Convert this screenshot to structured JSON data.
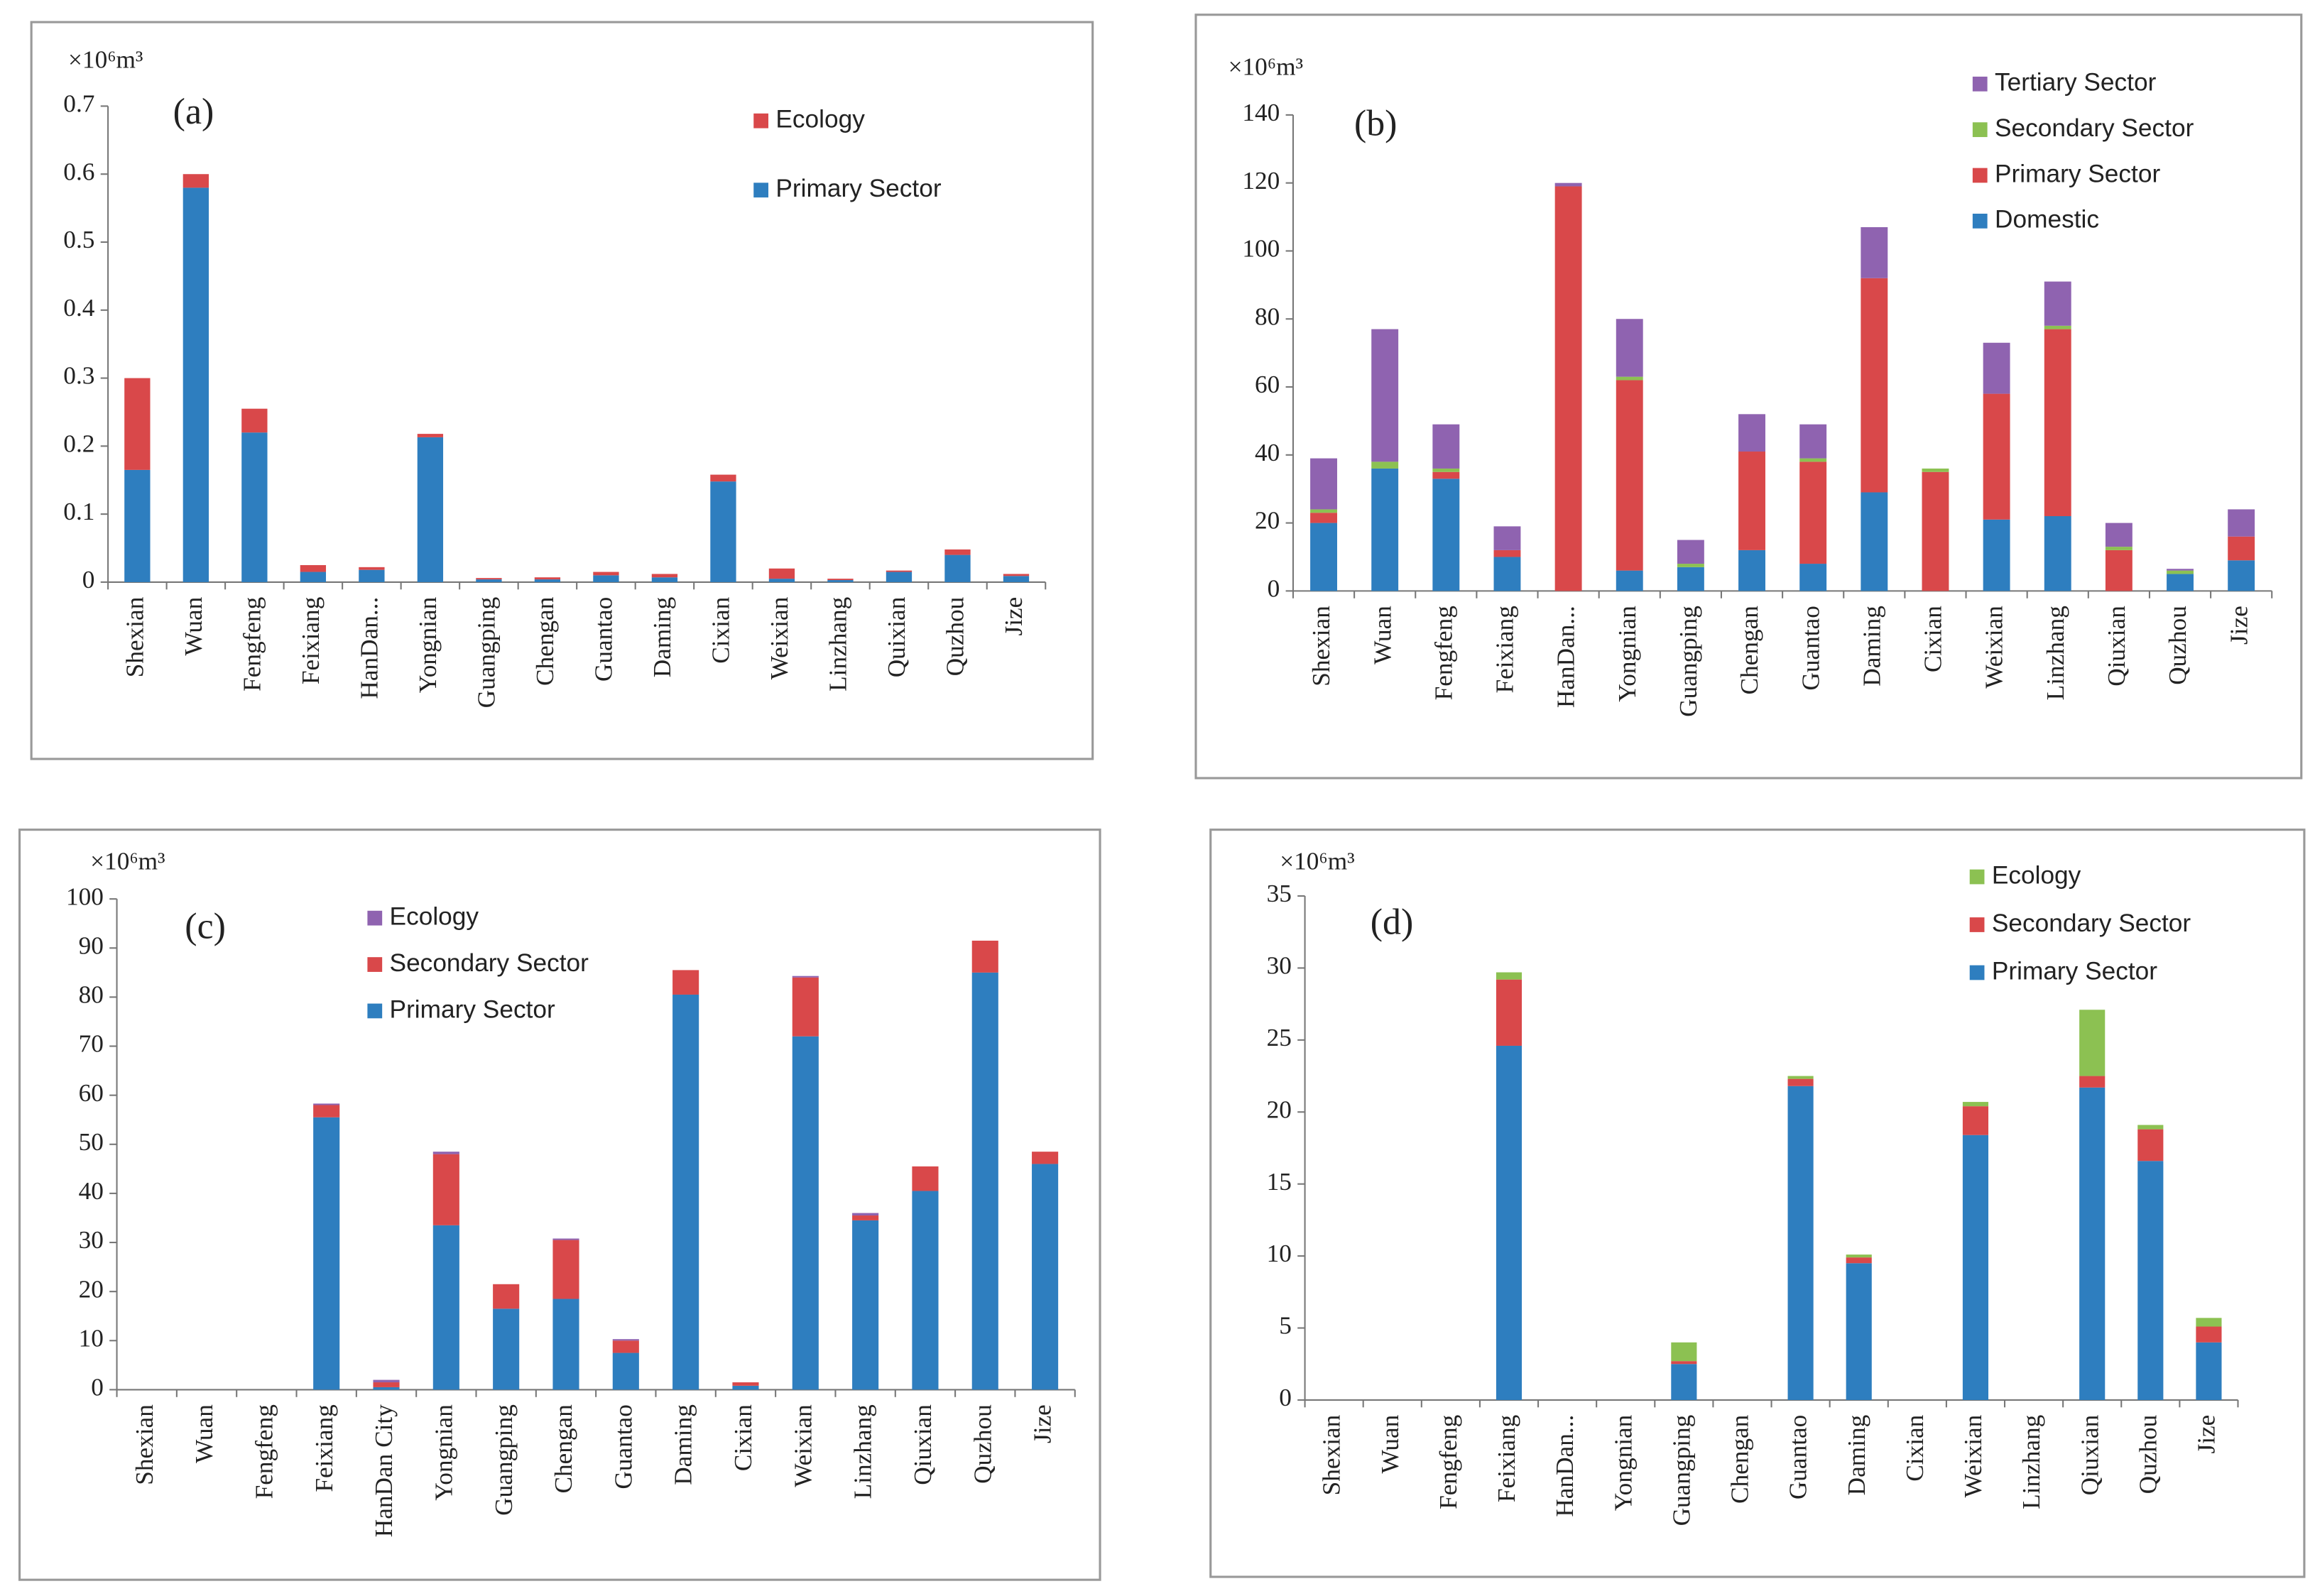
{
  "chart_data": [
    {
      "type": "bar",
      "stacked": true,
      "annotation": "(a)",
      "y_label": "×10⁶m³",
      "categories": [
        "Shexian",
        "Wuan",
        "Fengfeng",
        "Feixiang",
        "HanDan...",
        "Yongnian",
        "Guangping",
        "Chengan",
        "Guantao",
        "Daming",
        "Cixian",
        "Weixian",
        "Linzhang",
        "Quixian",
        "Quzhou",
        "Jize"
      ],
      "series": [
        {
          "name": "Primary Sector",
          "color": "#2e7ebf",
          "values": [
            0.165,
            0.58,
            0.22,
            0.015,
            0.018,
            0.213,
            0.004,
            0.004,
            0.01,
            0.007,
            0.148,
            0.005,
            0.003,
            0.015,
            0.04,
            0.009
          ]
        },
        {
          "name": "Ecology",
          "color": "#d9484a",
          "values": [
            0.135,
            0.02,
            0.035,
            0.01,
            0.004,
            0.005,
            0.002,
            0.003,
            0.005,
            0.005,
            0.01,
            0.015,
            0.002,
            0.002,
            0.008,
            0.003
          ]
        }
      ],
      "ylim": [
        0,
        0.7
      ],
      "yticks": [
        0,
        0.1,
        0.2,
        0.3,
        0.4,
        0.5,
        0.6,
        0.7
      ],
      "grid": false
    },
    {
      "type": "bar",
      "stacked": true,
      "annotation": "(b)",
      "y_label": "×10⁶m³",
      "categories": [
        "Shexian",
        "Wuan",
        "Fengfeng",
        "Feixiang",
        "HanDan...",
        "Yongnian",
        "Guangping",
        "Chengan",
        "Guantao",
        "Daming",
        "Cixian",
        "Weixian",
        "Linzhang",
        "Qiuxian",
        "Quzhou",
        "Jize"
      ],
      "series": [
        {
          "name": "Domestic",
          "color": "#2e7ebf",
          "values": [
            20,
            36,
            33,
            10,
            0,
            6,
            7,
            12,
            8,
            29,
            0,
            21,
            22,
            0,
            5,
            9
          ]
        },
        {
          "name": "Primary Sector",
          "color": "#d9484a",
          "values": [
            3,
            0,
            2,
            2,
            119,
            56,
            0,
            29,
            30,
            63,
            35,
            37,
            55,
            12,
            0,
            7
          ]
        },
        {
          "name": "Secondary Sector",
          "color": "#8cc152",
          "values": [
            1,
            2,
            1,
            0,
            0,
            1,
            1,
            0,
            1,
            0,
            1,
            0,
            1,
            1,
            1,
            0
          ]
        },
        {
          "name": "Tertiary Sector",
          "color": "#8f63b0",
          "values": [
            15,
            39,
            13,
            7,
            1,
            17,
            7,
            11,
            10,
            15,
            0,
            15,
            13,
            7,
            0.5,
            8
          ]
        }
      ],
      "ylim": [
        0,
        140
      ],
      "yticks": [
        0,
        20,
        40,
        60,
        80,
        100,
        120,
        140
      ],
      "grid": false
    },
    {
      "type": "bar",
      "stacked": true,
      "annotation": "(c)",
      "y_label": "×10⁶m³",
      "categories": [
        "Shexian",
        "Wuan",
        "Fengfeng",
        "Feixiang",
        "HanDan City",
        "Yongnian",
        "Guangping",
        "Chengan",
        "Guantao",
        "Daming",
        "Cixian",
        "Weixian",
        "Linzhang",
        "Qiuxian",
        "Quzhou",
        "Jize"
      ],
      "series": [
        {
          "name": "Primary Sector",
          "color": "#2e7ebf",
          "values": [
            0,
            0,
            0,
            55.5,
            0.5,
            33.5,
            16.5,
            18.5,
            7.5,
            80.5,
            0.8,
            72,
            34.5,
            40.5,
            85,
            46
          ]
        },
        {
          "name": "Secondary Sector",
          "color": "#d9484a",
          "values": [
            0,
            0,
            0,
            2.5,
            1,
            14.5,
            5,
            12,
            2.5,
            5,
            0.7,
            12,
            1,
            5,
            6.5,
            2.5
          ]
        },
        {
          "name": "Ecology",
          "color": "#8f63b0",
          "values": [
            0,
            0,
            0,
            0.3,
            0.5,
            0.5,
            0,
            0.3,
            0.3,
            0,
            0,
            0.3,
            0.5,
            0,
            0,
            0
          ]
        }
      ],
      "ylim": [
        0,
        100
      ],
      "yticks": [
        0,
        10,
        20,
        30,
        40,
        50,
        60,
        70,
        80,
        90,
        100
      ],
      "grid": false
    },
    {
      "type": "bar",
      "stacked": true,
      "annotation": "(d)",
      "y_label": "×10⁶m³",
      "categories": [
        "Shexian",
        "Wuan",
        "Fengfeng",
        "Feixiang",
        "HanDan...",
        "Yongnian",
        "Guangping",
        "Chengan",
        "Guantao",
        "Daming",
        "Cixian",
        "Weixian",
        "Linzhang",
        "Qiuxian",
        "Quzhou",
        "Jize"
      ],
      "series": [
        {
          "name": "Primary Sector",
          "color": "#2e7ebf",
          "values": [
            0,
            0,
            0,
            24.6,
            0,
            0,
            2.5,
            0,
            21.8,
            9.5,
            0,
            18.4,
            0,
            21.7,
            16.6,
            4
          ]
        },
        {
          "name": "Secondary Sector",
          "color": "#d9484a",
          "values": [
            0,
            0,
            0,
            4.6,
            0,
            0,
            0.2,
            0,
            0.5,
            0.4,
            0,
            2,
            0,
            0.8,
            2.2,
            1.1
          ]
        },
        {
          "name": "Ecology",
          "color": "#8cc152",
          "values": [
            0,
            0,
            0,
            0.5,
            0,
            0,
            1.3,
            0,
            0.2,
            0.2,
            0,
            0.3,
            0,
            4.6,
            0.3,
            0.6
          ]
        }
      ],
      "ylim": [
        0,
        35
      ],
      "yticks": [
        0,
        5,
        10,
        15,
        20,
        25,
        30,
        35
      ],
      "grid": false
    }
  ]
}
